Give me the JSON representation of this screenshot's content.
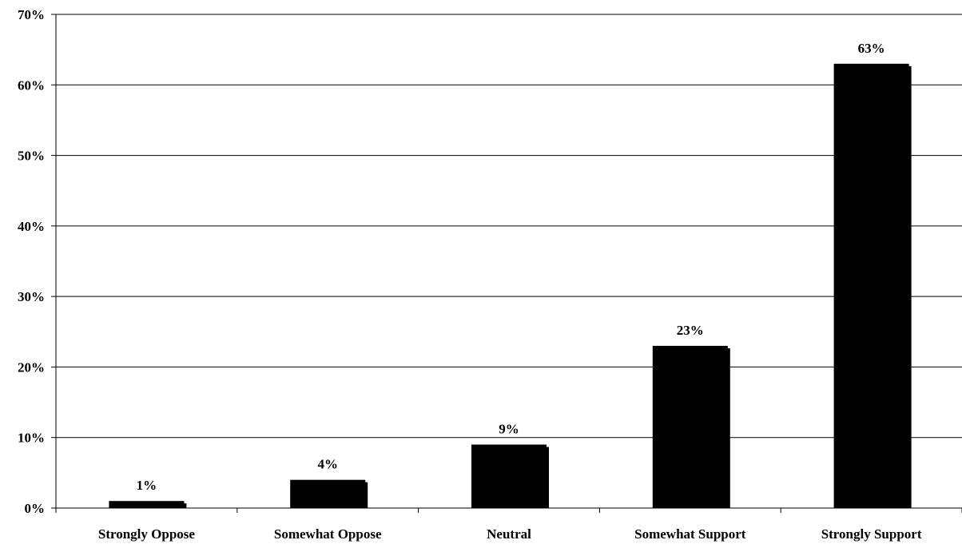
{
  "chart_data": {
    "type": "bar",
    "title": "",
    "xlabel": "",
    "ylabel": "",
    "categories": [
      "Strongly Oppose",
      "Somewhat Oppose",
      "Neutral",
      "Somewhat Support",
      "Strongly Support"
    ],
    "values": [
      1,
      4,
      9,
      23,
      63
    ],
    "data_labels": [
      "1%",
      "4%",
      "9%",
      "23%",
      "63%"
    ],
    "ylim": [
      0,
      70
    ],
    "yticks": [
      0,
      10,
      20,
      30,
      40,
      50,
      60,
      70
    ],
    "ytick_labels": [
      "0%",
      "10%",
      "20%",
      "30%",
      "40%",
      "50%",
      "60%",
      "70%"
    ],
    "grid": true,
    "legend": "none",
    "bar_color": "#000000",
    "axis_color": "#000000"
  }
}
